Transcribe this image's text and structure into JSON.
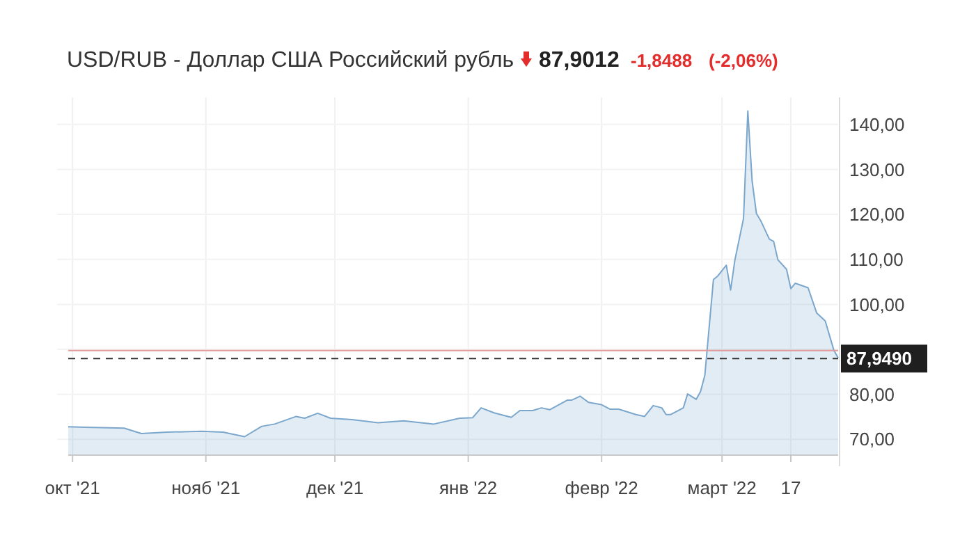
{
  "chart_data": {
    "type": "area",
    "title": "USD/RUB - Доллар США Российский рубль",
    "annotations": [
      "87,9012",
      "-1,8488",
      "(-2,06%)"
    ],
    "x": [
      "2021-09-30",
      "2021-10-04",
      "2021-10-13",
      "2021-10-17",
      "2021-10-23",
      "2021-10-31",
      "2021-11-05",
      "2021-11-10",
      "2021-11-14",
      "2021-11-17",
      "2021-11-22",
      "2021-11-24",
      "2021-11-27",
      "2021-11-30",
      "2021-12-05",
      "2021-12-11",
      "2021-12-17",
      "2021-12-24",
      "2021-12-30",
      "2022-01-02",
      "2022-01-04",
      "2022-01-07",
      "2022-01-11",
      "2022-01-13",
      "2022-01-16",
      "2022-01-18",
      "2022-01-20",
      "2022-01-24",
      "2022-01-25",
      "2022-01-27",
      "2022-01-29",
      "2022-02-01",
      "2022-02-03",
      "2022-02-05",
      "2022-02-09",
      "2022-02-11",
      "2022-02-13",
      "2022-02-15",
      "2022-02-16",
      "2022-02-17",
      "2022-02-20",
      "2022-02-21",
      "2022-02-23",
      "2022-02-24",
      "2022-02-25",
      "2022-02-27",
      "2022-02-28",
      "2022-03-02",
      "2022-03-03",
      "2022-03-04",
      "2022-03-06",
      "2022-03-07",
      "2022-03-08",
      "2022-03-09",
      "2022-03-10",
      "2022-03-12",
      "2022-03-13",
      "2022-03-14",
      "2022-03-16",
      "2022-03-17",
      "2022-03-18",
      "2022-03-21",
      "2022-03-23",
      "2022-03-25",
      "2022-03-27",
      "2022-03-28"
    ],
    "series": [
      {
        "color": "#7ba7cc",
        "values": [
          72.8,
          72.7,
          72.5,
          71.3,
          71.6,
          71.8,
          71.6,
          70.6,
          72.9,
          73.4,
          75.1,
          74.7,
          75.8,
          74.7,
          74.4,
          73.7,
          74.1,
          73.4,
          74.7,
          74.8,
          77.0,
          75.9,
          74.9,
          76.4,
          76.4,
          77.0,
          76.6,
          78.7,
          78.7,
          79.6,
          78.2,
          77.7,
          76.7,
          76.7,
          75.5,
          75.1,
          77.5,
          77.0,
          75.5,
          75.5,
          77.0,
          80.1,
          78.9,
          80.6,
          84.2,
          105.5,
          106.3,
          108.7,
          103.2,
          109.9,
          119.1,
          143.0,
          127.4,
          120.2,
          118.6,
          114.5,
          114.0,
          109.9,
          107.8,
          103.5,
          104.7,
          103.7,
          98.1,
          96.3,
          89.8,
          88.1
        ]
      }
    ],
    "xlim": [
      "2021-09-30",
      "2022-03-28"
    ],
    "xticks": [
      {
        "value": "2021-10-01",
        "label": "окт '21"
      },
      {
        "value": "2021-11-01",
        "label": "нояб '21"
      },
      {
        "value": "2021-12-01",
        "label": "дек '21"
      },
      {
        "value": "2022-01-01",
        "label": "янв '22"
      },
      {
        "value": "2022-02-01",
        "label": "февр '22"
      },
      {
        "value": "2022-03-01",
        "label": "март '22"
      },
      {
        "value": "2022-03-17",
        "label": "17"
      }
    ],
    "ylim": [
      66.5,
      146
    ],
    "yticks": [
      {
        "value": 70,
        "label": "70,00"
      },
      {
        "value": 80,
        "label": "80,00"
      },
      {
        "value": 90,
        "label": null
      },
      {
        "value": 100,
        "label": "100,00"
      },
      {
        "value": 110,
        "label": "110,00"
      },
      {
        "value": 120,
        "label": "120,00"
      },
      {
        "value": 130,
        "label": "130,00"
      },
      {
        "value": 140,
        "label": "140,00"
      }
    ],
    "ref_lines": [
      {
        "axis": "y",
        "value": 89.75,
        "color": "#e39a9a",
        "line_style": "solid"
      },
      {
        "axis": "y",
        "value": 87.949,
        "label": "87,9490",
        "color": "#333333",
        "line_style": "dashed"
      }
    ],
    "grid": true
  }
}
